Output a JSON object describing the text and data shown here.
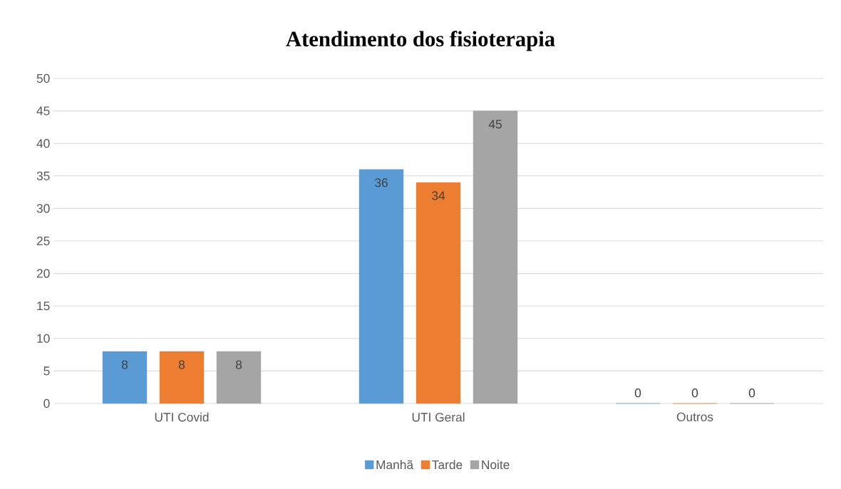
{
  "chart_data": {
    "type": "bar",
    "title": "Atendimento dos fisioterapia",
    "categories": [
      "UTI Covid",
      "UTI Geral",
      "Outros"
    ],
    "series": [
      {
        "name": "Manhã",
        "color": "#5b9bd5",
        "values": [
          8,
          36,
          0
        ]
      },
      {
        "name": "Tarde",
        "color": "#ed7d31",
        "values": [
          8,
          34,
          0
        ]
      },
      {
        "name": "Noite",
        "color": "#a5a5a5",
        "values": [
          8,
          45,
          0
        ]
      }
    ],
    "ylim": [
      0,
      50
    ],
    "yticks": [
      0,
      5,
      10,
      15,
      20,
      25,
      30,
      35,
      40,
      45,
      50
    ],
    "grid": "y",
    "legend": "bottom",
    "data_labels": true
  }
}
